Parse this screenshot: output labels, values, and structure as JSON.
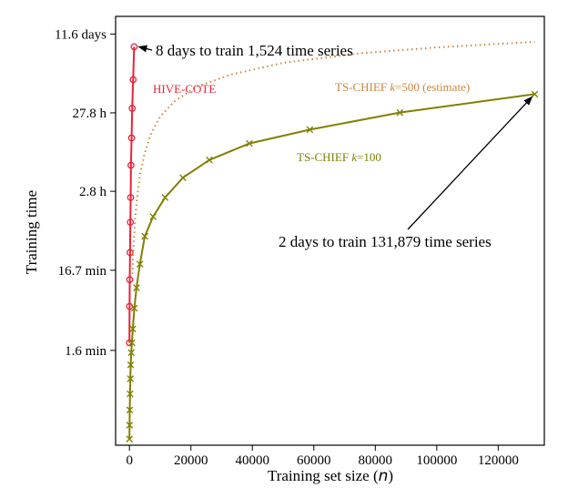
{
  "chart_data": {
    "type": "line",
    "xlabel": "Training set size (",
    "xlabel_var": "n",
    "xlabel_close": ")",
    "ylabel": "Training time",
    "y_scale": "log",
    "x_ticks": [
      {
        "value": 0,
        "label": "0"
      },
      {
        "value": 20000,
        "label": "20000"
      },
      {
        "value": 40000,
        "label": "40000"
      },
      {
        "value": 60000,
        "label": "60000"
      },
      {
        "value": 80000,
        "label": "80000"
      },
      {
        "value": 100000,
        "label": "100000"
      },
      {
        "value": 120000,
        "label": "120000"
      }
    ],
    "y_ticks": [
      {
        "value": 1.6,
        "label": "1.6 min"
      },
      {
        "value": 16.7,
        "label": "16.7 min"
      },
      {
        "value": 168,
        "label": "2.8 h"
      },
      {
        "value": 1668,
        "label": "27.8 h"
      },
      {
        "value": 16704,
        "label": "11.6 days"
      }
    ],
    "xlim": [
      -4500,
      135000
    ],
    "ylim_minutes": [
      0.1,
      28000
    ],
    "series": [
      {
        "name_prefix": "HIVE-COTE",
        "name_var": "",
        "name_suffix": "",
        "color": "#e8233a",
        "marker": "circle",
        "line": "solid",
        "x": [
          0,
          50,
          100,
          200,
          300,
          400,
          500,
          700,
          900,
          1200,
          1524
        ],
        "y": [
          2.0,
          5.8,
          12.7,
          28,
          68,
          140,
          360,
          800,
          1900,
          4400,
          11520
        ]
      },
      {
        "name_prefix": "TS-CHIEF ",
        "name_var": "k",
        "name_suffix": "=100",
        "color": "#808000",
        "marker": "x",
        "line": "solid",
        "x": [
          0,
          50,
          100,
          200,
          300,
          400,
          600,
          800,
          1100,
          1600,
          2300,
          3400,
          5000,
          7700,
          11600,
          17400,
          26000,
          39000,
          58700,
          88000,
          131879
        ],
        "y": [
          0.12,
          0.18,
          0.28,
          0.45,
          0.7,
          1.05,
          1.5,
          2.0,
          3.0,
          5.5,
          10,
          20,
          45,
          80,
          140,
          250,
          420,
          680,
          1020,
          1680,
          2880
        ]
      },
      {
        "name_prefix": "TS-CHIEF ",
        "name_var": "k",
        "name_suffix": "=500 (estimate)",
        "color": "#cd853f",
        "marker": "none",
        "line": "dotted",
        "x": [
          1000,
          1300,
          1800,
          2500,
          3500,
          5000,
          7000,
          10000,
          15000,
          22000,
          33000,
          50000,
          75000,
          100000,
          131879
        ],
        "y": [
          15,
          32,
          70,
          140,
          280,
          520,
          900,
          1500,
          2400,
          3600,
          5100,
          7200,
          9500,
          11300,
          13300
        ]
      }
    ],
    "annotations": [
      {
        "text": "8 days to train 1,524 time series"
      },
      {
        "text": "2 days to train 131,879 time series"
      }
    ]
  }
}
